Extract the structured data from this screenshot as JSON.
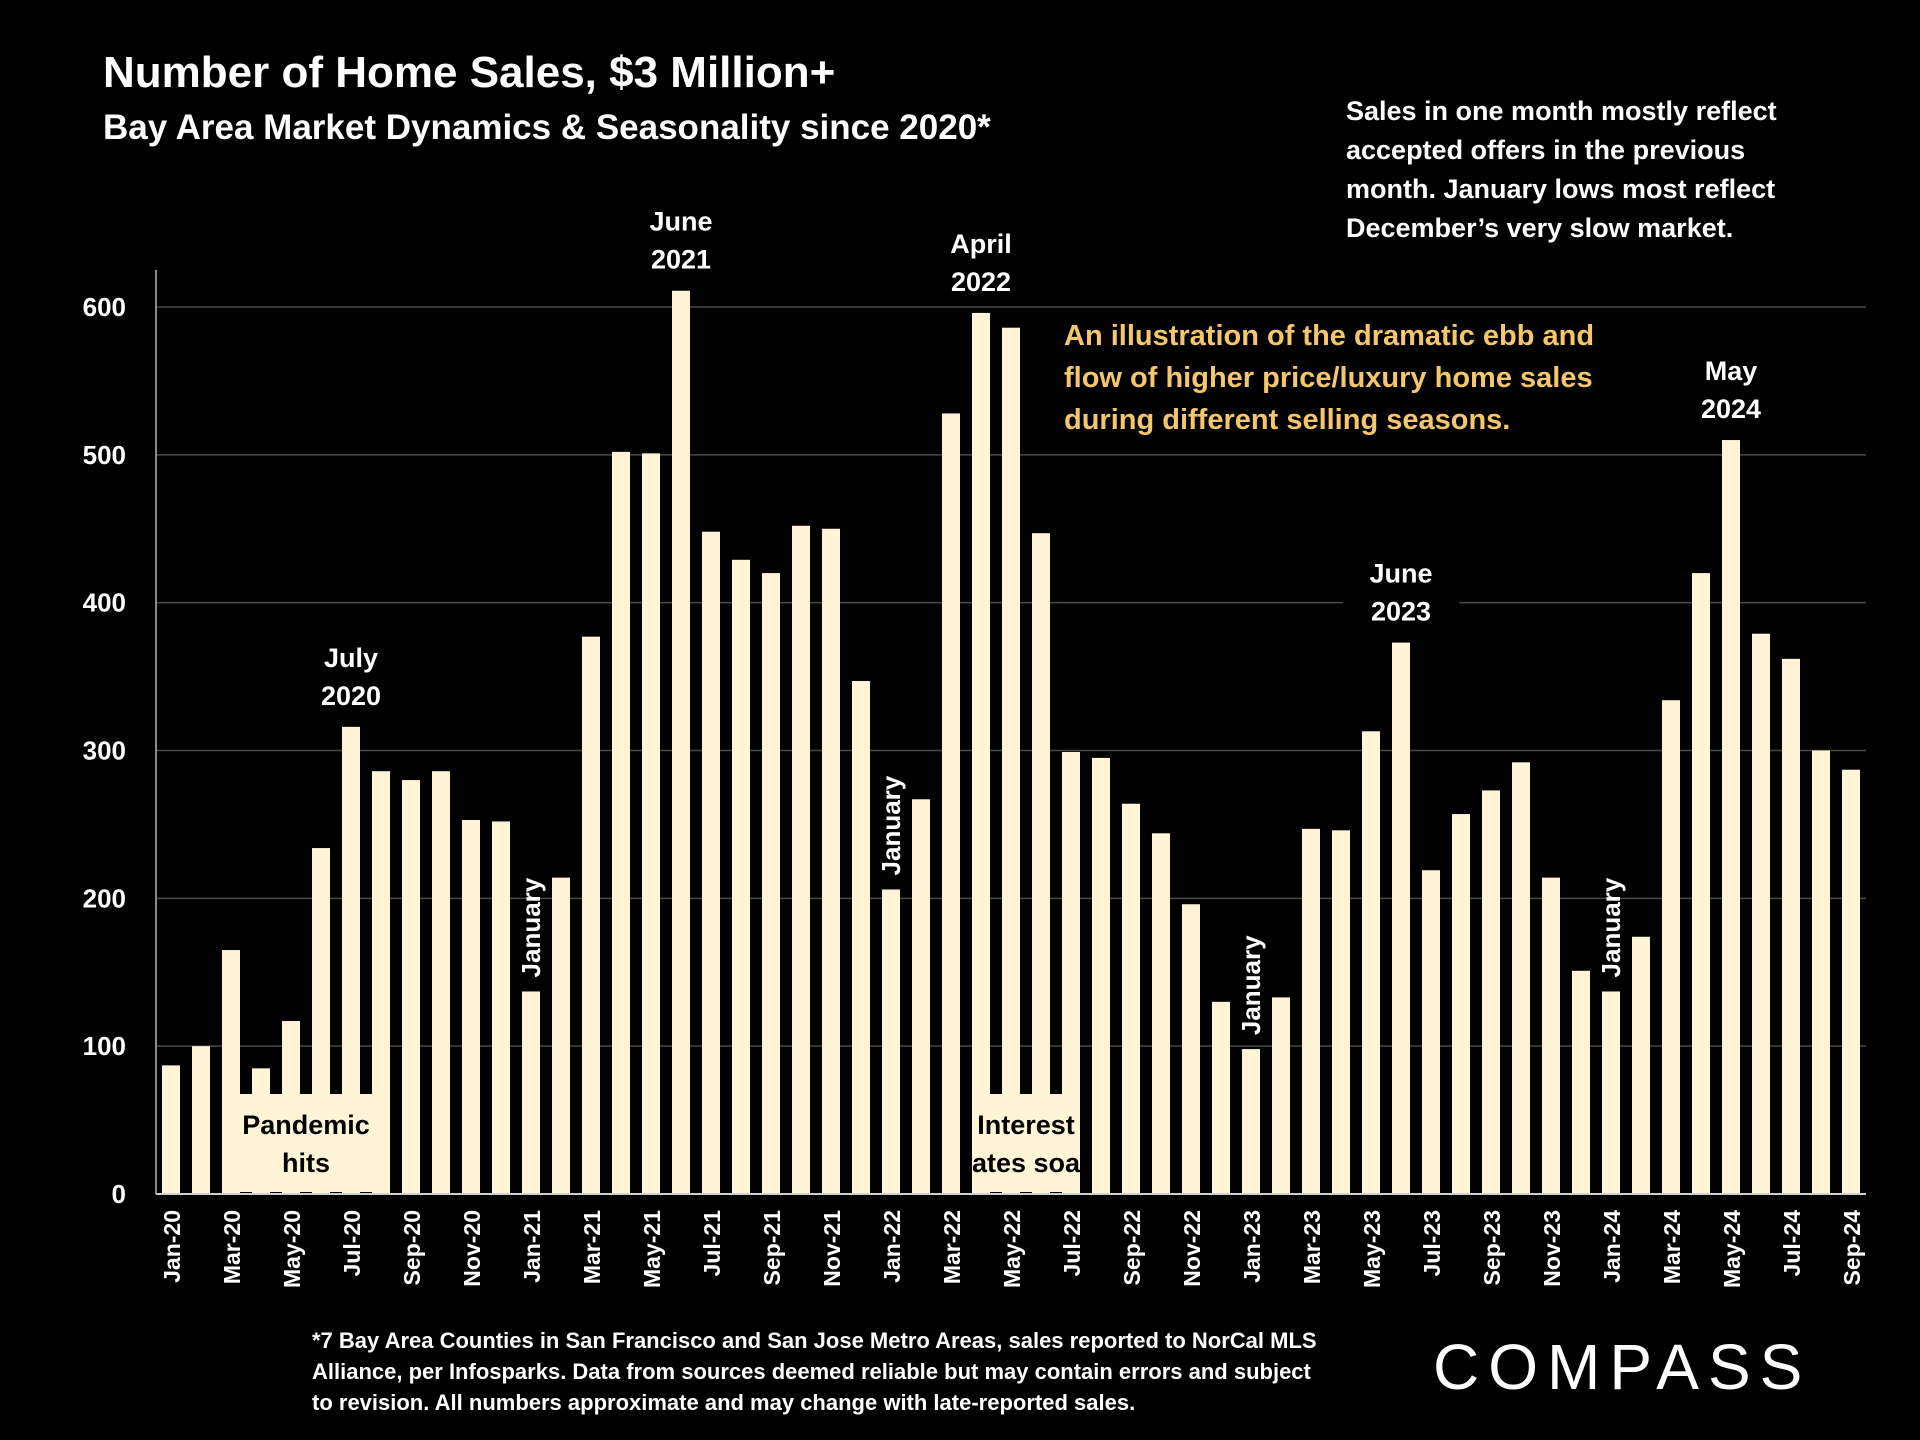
{
  "header": {
    "title": "Number of Home Sales, $3 Million+",
    "subtitle": "Bay Area Market Dynamics & Seasonality since 2020*"
  },
  "side_note": [
    "Sales in one month mostly reflect",
    "accepted offers in the previous",
    "month. January lows most reflect",
    "December’s very slow market."
  ],
  "illustration_note": [
    "An illustration of the dramatic  ebb and",
    "flow of higher price/luxury home sales",
    "during different selling seasons."
  ],
  "footnote": [
    "*7 Bay Area Counties in San Francisco and San Jose Metro Areas, sales reported to NorCal MLS",
    "Alliance, per Infosparks.  Data from sources deemed reliable but may contain errors and subject",
    "to revision. All numbers approximate and may change with late-reported sales."
  ],
  "logo": {
    "text": "COMPASS"
  },
  "colors": {
    "background": "#000000",
    "bar": "#fff5d6",
    "highlight_text": "#f5c76a",
    "grid": "#4a4a4a"
  },
  "chart_data": {
    "type": "bar",
    "ylim": [
      0,
      620
    ],
    "yticks": [
      0,
      100,
      200,
      300,
      400,
      500,
      600
    ],
    "grid": true,
    "categories": [
      "Jan-20",
      "Feb-20",
      "Mar-20",
      "Apr-20",
      "May-20",
      "Jun-20",
      "Jul-20",
      "Aug-20",
      "Sep-20",
      "Oct-20",
      "Nov-20",
      "Dec-20",
      "Jan-21",
      "Feb-21",
      "Mar-21",
      "Apr-21",
      "May-21",
      "Jun-21",
      "Jul-21",
      "Aug-21",
      "Sep-21",
      "Oct-21",
      "Nov-21",
      "Dec-21",
      "Jan-22",
      "Feb-22",
      "Mar-22",
      "Apr-22",
      "May-22",
      "Jun-22",
      "Jul-22",
      "Aug-22",
      "Sep-22",
      "Oct-22",
      "Nov-22",
      "Dec-22",
      "Jan-23",
      "Feb-23",
      "Mar-23",
      "Apr-23",
      "May-23",
      "Jun-23",
      "Jul-23",
      "Aug-23",
      "Sep-23",
      "Oct-23",
      "Nov-23",
      "Dec-23",
      "Jan-24",
      "Feb-24",
      "Mar-24",
      "Apr-24",
      "May-24",
      "Jun-24",
      "Jul-24",
      "Aug-24",
      "Sep-24"
    ],
    "tick_labels_shown": [
      "Jan-20",
      "Mar-20",
      "May-20",
      "Jul-20",
      "Sep-20",
      "Nov-20",
      "Jan-21",
      "Mar-21",
      "May-21",
      "Jul-21",
      "Sep-21",
      "Nov-21",
      "Jan-22",
      "Mar-22",
      "May-22",
      "Jul-22",
      "Sep-22",
      "Nov-22",
      "Jan-23",
      "Mar-23",
      "May-23",
      "Jul-23",
      "Sep-23",
      "Nov-23",
      "Jan-24",
      "Mar-24",
      "May-24",
      "Jul-24",
      "Sep-24"
    ],
    "values": [
      87,
      100,
      165,
      85,
      117,
      234,
      316,
      286,
      280,
      286,
      253,
      252,
      137,
      214,
      377,
      502,
      501,
      611,
      448,
      429,
      420,
      452,
      450,
      347,
      206,
      267,
      528,
      596,
      586,
      447,
      299,
      295,
      264,
      244,
      196,
      130,
      98,
      133,
      247,
      246,
      313,
      373,
      219,
      257,
      273,
      292,
      214,
      151,
      137,
      174,
      334,
      420,
      510,
      379,
      362,
      300,
      287
    ],
    "annotations": [
      {
        "lines": [
          "July",
          "2020"
        ],
        "at": "Jul-20",
        "kind": "above"
      },
      {
        "lines": [
          "June",
          "2021"
        ],
        "at": "Jun-21",
        "kind": "above"
      },
      {
        "lines": [
          "April",
          "2022"
        ],
        "at": "Apr-22",
        "kind": "above"
      },
      {
        "lines": [
          "June",
          "2023"
        ],
        "at": "Jun-23",
        "kind": "above"
      },
      {
        "lines": [
          "May",
          "2024"
        ],
        "at": "May-24",
        "kind": "above"
      },
      {
        "lines": [
          "January"
        ],
        "at": "Jan-21",
        "kind": "vertical"
      },
      {
        "lines": [
          "January"
        ],
        "at": "Jan-22",
        "kind": "vertical"
      },
      {
        "lines": [
          "January"
        ],
        "at": "Jan-23",
        "kind": "vertical"
      },
      {
        "lines": [
          "January"
        ],
        "at": "Jan-24",
        "kind": "vertical"
      }
    ],
    "boxes": [
      {
        "lines": [
          "Pandemic",
          "hits"
        ],
        "from": "Mar-20",
        "to": "Aug-20"
      },
      {
        "lines": [
          "Interest",
          "rates soar"
        ],
        "from": "Apr-22",
        "to": "Jul-22"
      }
    ]
  }
}
